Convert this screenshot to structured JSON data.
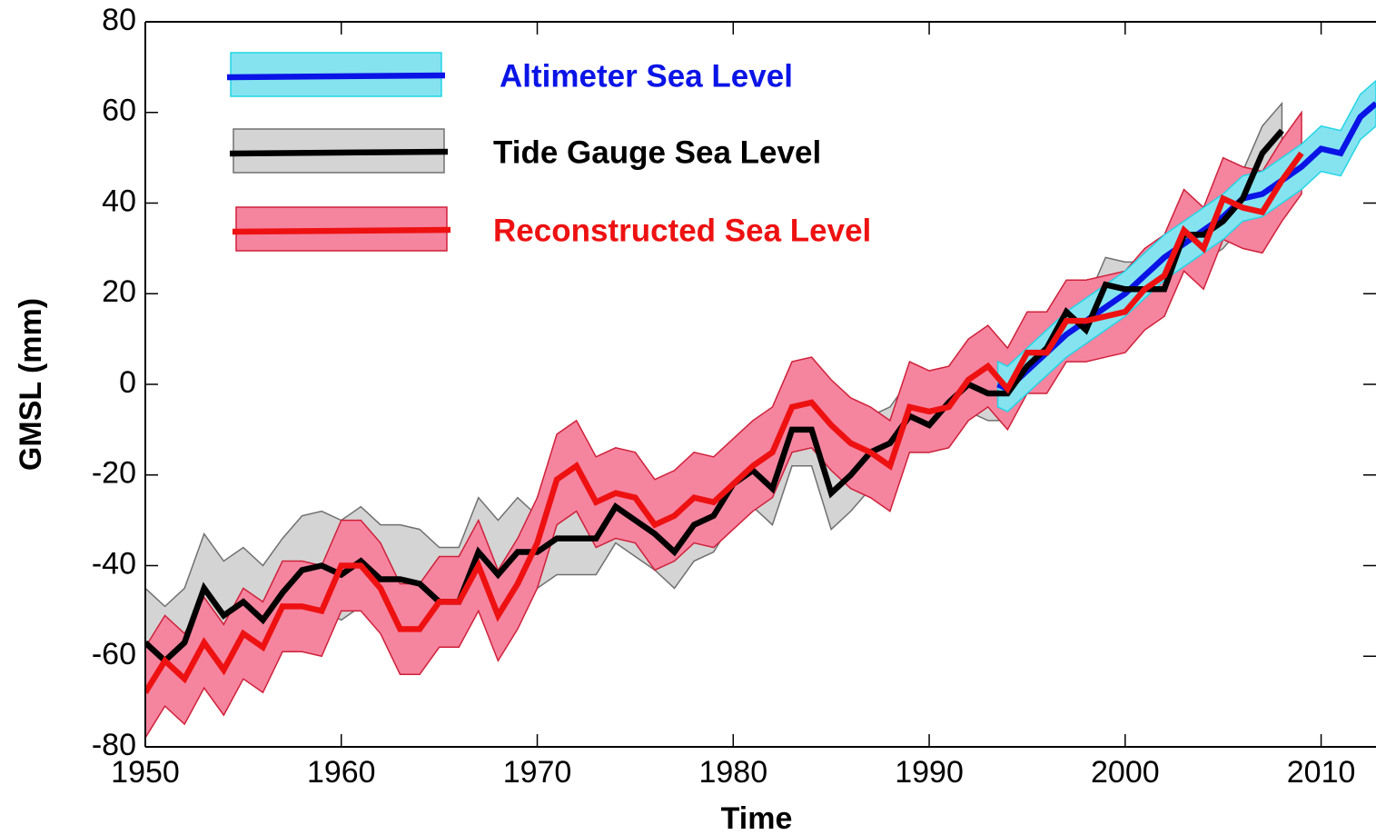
{
  "chart_data": {
    "type": "line",
    "xlabel": "Time",
    "ylabel": "GMSL (mm)",
    "xlim": [
      1950,
      2012.8
    ],
    "ylim": [
      -80,
      80
    ],
    "xticks": [
      1950,
      1960,
      1970,
      1980,
      1990,
      2000,
      2010
    ],
    "yticks": [
      -80,
      -60,
      -40,
      -20,
      0,
      20,
      40,
      60,
      80
    ],
    "legend": "upper left",
    "series": [
      {
        "name": "Altimeter Sea Level",
        "color": "#0a14e6",
        "band_color": "#85e3f0",
        "band_edge": "#22d5e6",
        "x": [
          1993.5,
          1994,
          1995,
          1996,
          1997,
          1998,
          1999,
          2000,
          2001,
          2002,
          2003,
          2004,
          2005,
          2006,
          2007,
          2008,
          2009,
          2010,
          2011,
          2012,
          2012.8
        ],
        "values": [
          0,
          -1,
          3,
          7,
          11,
          14,
          17,
          20,
          24,
          28,
          31,
          34,
          37,
          41,
          42,
          45,
          48,
          52,
          51,
          59,
          62
        ],
        "upper": [
          5,
          4,
          8,
          12,
          16,
          19,
          22,
          25,
          29,
          33,
          36,
          39,
          42,
          46,
          47,
          50,
          53,
          57,
          56,
          64,
          67
        ],
        "lower": [
          -5,
          -6,
          -2,
          2,
          6,
          9,
          12,
          15,
          19,
          23,
          26,
          29,
          32,
          36,
          37,
          40,
          43,
          47,
          46,
          54,
          57
        ]
      },
      {
        "name": "Tide Gauge Sea Level",
        "color": "#000000",
        "band_color": "#d4d4d4",
        "band_edge": "#707070",
        "x": [
          1950,
          1951,
          1952,
          1953,
          1954,
          1955,
          1956,
          1957,
          1958,
          1959,
          1960,
          1961,
          1962,
          1963,
          1964,
          1965,
          1966,
          1967,
          1968,
          1969,
          1970,
          1971,
          1972,
          1973,
          1974,
          1975,
          1976,
          1977,
          1978,
          1979,
          1980,
          1981,
          1982,
          1983,
          1984,
          1985,
          1986,
          1987,
          1988,
          1989,
          1990,
          1991,
          1992,
          1993,
          1994,
          1995,
          1996,
          1997,
          1998,
          1999,
          2000,
          2001,
          2002,
          2003,
          2004,
          2005,
          2006,
          2007,
          2008
        ],
        "values": [
          -57,
          -61,
          -57,
          -45,
          -51,
          -48,
          -52,
          -46,
          -41,
          -40,
          -42,
          -39,
          -43,
          -43,
          -44,
          -48,
          -48,
          -37,
          -42,
          -37,
          -37,
          -34,
          -34,
          -34,
          -27,
          -30,
          -33,
          -37,
          -31,
          -29,
          -22,
          -19,
          -23,
          -10,
          -10,
          -24,
          -20,
          -15,
          -13,
          -7,
          -9,
          -4,
          0,
          -2,
          -2,
          4,
          8,
          16,
          12,
          22,
          21,
          21,
          21,
          33,
          33,
          36,
          41,
          51,
          56
        ],
        "upper": [
          -45,
          -49,
          -45,
          -33,
          -39,
          -36,
          -40,
          -34,
          -29,
          -28,
          -30,
          -27,
          -31,
          -31,
          -32,
          -36,
          -36,
          -25,
          -30,
          -25,
          -29,
          -26,
          -26,
          -26,
          -19,
          -22,
          -25,
          -29,
          -23,
          -21,
          -14,
          -11,
          -15,
          -2,
          -2,
          -16,
          -12,
          -7,
          -5,
          1,
          -3,
          2,
          6,
          4,
          4,
          10,
          14,
          22,
          18,
          28,
          27,
          27,
          27,
          39,
          39,
          42,
          47,
          57,
          62
        ],
        "lower": [
          -67,
          -71,
          -67,
          -55,
          -61,
          -58,
          -62,
          -56,
          -51,
          -50,
          -52,
          -49,
          -53,
          -53,
          -54,
          -58,
          -58,
          -47,
          -52,
          -47,
          -45,
          -42,
          -42,
          -42,
          -35,
          -38,
          -41,
          -45,
          -39,
          -37,
          -30,
          -27,
          -31,
          -18,
          -18,
          -32,
          -28,
          -23,
          -21,
          -15,
          -15,
          -10,
          -6,
          -8,
          -8,
          -2,
          2,
          10,
          6,
          16,
          15,
          15,
          15,
          27,
          27,
          30,
          35,
          45,
          50
        ]
      },
      {
        "name": "Reconstructed Sea Level",
        "color": "#ee1111",
        "band_color": "#f5849f",
        "band_edge": "#d0203a",
        "x": [
          1950,
          1951,
          1952,
          1953,
          1954,
          1955,
          1956,
          1957,
          1958,
          1959,
          1960,
          1961,
          1962,
          1963,
          1964,
          1965,
          1966,
          1967,
          1968,
          1969,
          1970,
          1971,
          1972,
          1973,
          1974,
          1975,
          1976,
          1977,
          1978,
          1979,
          1980,
          1981,
          1982,
          1983,
          1984,
          1985,
          1986,
          1987,
          1988,
          1989,
          1990,
          1991,
          1992,
          1993,
          1994,
          1995,
          1996,
          1997,
          1998,
          1999,
          2000,
          2001,
          2002,
          2003,
          2004,
          2005,
          2006,
          2007,
          2008,
          2009
        ],
        "values": [
          -68,
          -61,
          -65,
          -57,
          -63,
          -55,
          -58,
          -49,
          -49,
          -50,
          -40,
          -40,
          -45,
          -54,
          -54,
          -48,
          -48,
          -40,
          -51,
          -44,
          -35,
          -21,
          -18,
          -26,
          -24,
          -25,
          -31,
          -29,
          -25,
          -26,
          -22,
          -18,
          -15,
          -5,
          -4,
          -9,
          -13,
          -15,
          -18,
          -5,
          -6,
          -5,
          1,
          4,
          -1,
          7,
          7,
          14,
          14,
          15,
          16,
          21,
          24,
          34,
          30,
          41,
          39,
          38,
          45,
          51
        ],
        "upper": [
          -58,
          -51,
          -55,
          -47,
          -53,
          -45,
          -48,
          -39,
          -39,
          -40,
          -30,
          -30,
          -35,
          -44,
          -44,
          -38,
          -38,
          -30,
          -41,
          -34,
          -25,
          -11,
          -8,
          -16,
          -14,
          -15,
          -21,
          -19,
          -15,
          -16,
          -12,
          -8,
          -5,
          5,
          6,
          1,
          -3,
          -5,
          -8,
          5,
          3,
          4,
          10,
          13,
          8,
          16,
          16,
          23,
          23,
          24,
          25,
          30,
          33,
          43,
          39,
          50,
          48,
          47,
          54,
          60
        ],
        "lower": [
          -78,
          -71,
          -75,
          -67,
          -73,
          -65,
          -68,
          -59,
          -59,
          -60,
          -50,
          -50,
          -55,
          -64,
          -64,
          -58,
          -58,
          -50,
          -61,
          -54,
          -45,
          -31,
          -28,
          -36,
          -34,
          -35,
          -41,
          -39,
          -35,
          -36,
          -32,
          -28,
          -25,
          -15,
          -14,
          -19,
          -23,
          -25,
          -28,
          -15,
          -15,
          -14,
          -8,
          -5,
          -10,
          -2,
          -2,
          5,
          5,
          6,
          7,
          12,
          15,
          25,
          21,
          32,
          30,
          29,
          36,
          42
        ]
      }
    ]
  }
}
